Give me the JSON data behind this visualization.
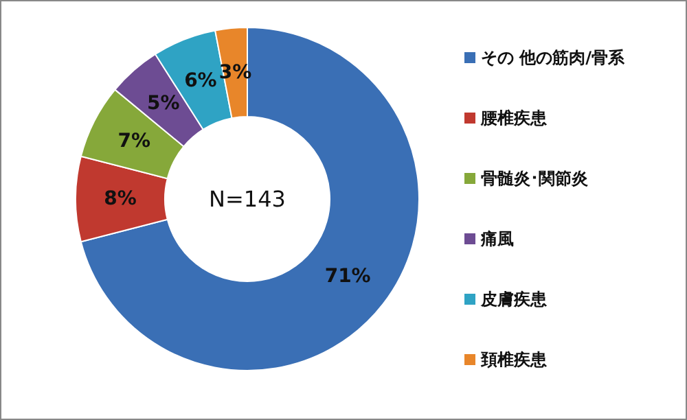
{
  "chart_data": {
    "type": "donut",
    "categories": [
      "その 他の筋肉/骨系",
      "腰椎疾患",
      "骨髄炎･関節炎",
      "痛風",
      "皮膚疾患",
      "頚椎疾患"
    ],
    "values": [
      71,
      8,
      7,
      5,
      6,
      3
    ],
    "colors": [
      "#3a6fb5",
      "#c0392f",
      "#86a83a",
      "#6d4c93",
      "#2fa3c4",
      "#e8862a"
    ],
    "value_labels": [
      "71%",
      "8%",
      "7%",
      "5%",
      "6%",
      "3%"
    ],
    "annotations": [
      "N=143"
    ],
    "legend": "right"
  }
}
